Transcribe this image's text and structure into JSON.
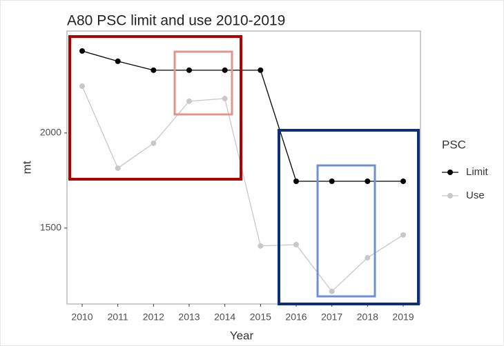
{
  "chart_data": {
    "type": "line",
    "title": "A80 PSC limit and use 2010-2019",
    "x_label": "Year",
    "y_label": "mt",
    "categories": [
      "2010",
      "2011",
      "2012",
      "2013",
      "2014",
      "2015",
      "2016",
      "2017",
      "2018",
      "2019"
    ],
    "series": [
      {
        "name": "Limit",
        "color": "#000000",
        "values": [
          2431,
          2377,
          2330,
          2330,
          2330,
          2330,
          1746,
          1746,
          1746,
          1746
        ]
      },
      {
        "name": "Use",
        "color": "#c8c8c8",
        "values": [
          2246,
          1815,
          1946,
          2167,
          2181,
          1406,
          1413,
          1167,
          1344,
          1464
        ]
      }
    ],
    "ylim": [
      1101,
      2536
    ],
    "yticks": [
      1500,
      2000
    ],
    "legend_title": "PSC",
    "legend": "right",
    "grid": false
  }
}
